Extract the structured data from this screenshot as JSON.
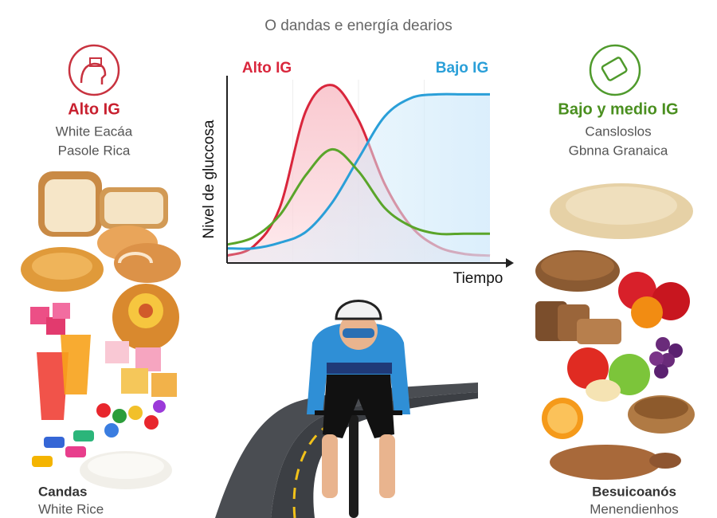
{
  "chart_data": {
    "type": "line",
    "subtitle": "O dandas e energía dearios",
    "x_label": "Tiempo",
    "y_label": "Nivel de gluccosa",
    "x": [
      0,
      1,
      2,
      3,
      4,
      5,
      6,
      7,
      8,
      9,
      10
    ],
    "xlim": [
      0,
      10
    ],
    "ylim": [
      0,
      100
    ],
    "series": [
      {
        "name": "Alto IG",
        "color": "#d9263c",
        "values": [
          4,
          9,
          30,
          83,
          97,
          78,
          43,
          20,
          9,
          5,
          4
        ]
      },
      {
        "name": "Bajo IG",
        "color": "#2a9fd8",
        "values": [
          8,
          8,
          11,
          17,
          33,
          57,
          80,
          90,
          92,
          92,
          92
        ]
      },
      {
        "color": "#5aa52a",
        "values": [
          10,
          14,
          26,
          48,
          62,
          50,
          30,
          20,
          16,
          16,
          16
        ]
      }
    ],
    "left_panel": {
      "title": "Alto IG",
      "lines": [
        "White Eacáa",
        "Pasole Rica"
      ],
      "footer": [
        "Candas",
        "White Rice"
      ]
    },
    "right_panel": {
      "title": "Bajo y medio IG",
      "lines": [
        "Cansloslos",
        "Gbnna Granaica"
      ],
      "footer": [
        "Besuicoanós",
        "Menendienhos"
      ]
    }
  }
}
